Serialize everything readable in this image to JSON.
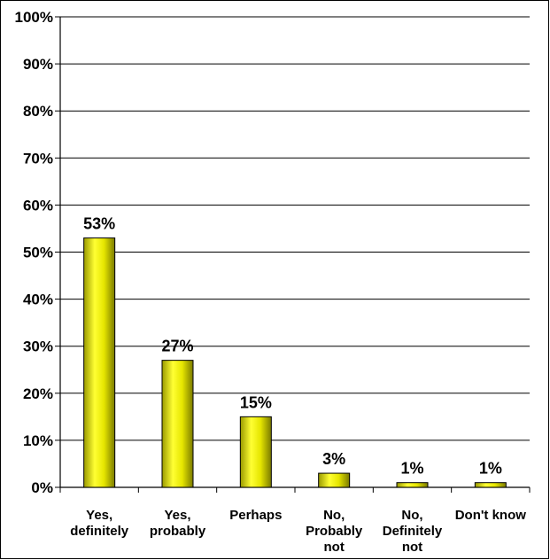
{
  "chart_data": {
    "type": "bar",
    "title": "",
    "xlabel": "",
    "ylabel": "",
    "categories": [
      [
        "Yes,",
        "definitely"
      ],
      [
        "Yes,",
        "probably"
      ],
      [
        "Perhaps"
      ],
      [
        "No,",
        "Probably",
        "not"
      ],
      [
        "No,",
        "Definitely",
        "not"
      ],
      [
        "Don't know"
      ]
    ],
    "values": [
      53,
      27,
      15,
      3,
      1,
      1
    ],
    "data_labels": [
      "53%",
      "27%",
      "15%",
      "3%",
      "1%",
      "1%"
    ],
    "ylim": [
      0,
      100
    ],
    "y_ticks": [
      0,
      10,
      20,
      30,
      40,
      50,
      60,
      70,
      80,
      90,
      100
    ],
    "y_tick_labels": [
      "0%",
      "10%",
      "20%",
      "30%",
      "40%",
      "50%",
      "60%",
      "70%",
      "80%",
      "90%",
      "100%"
    ],
    "grid": true,
    "legend": "none",
    "bar_color": "#e6e600",
    "bar_edge_color": "#000000",
    "gridline_color": "#000000"
  }
}
